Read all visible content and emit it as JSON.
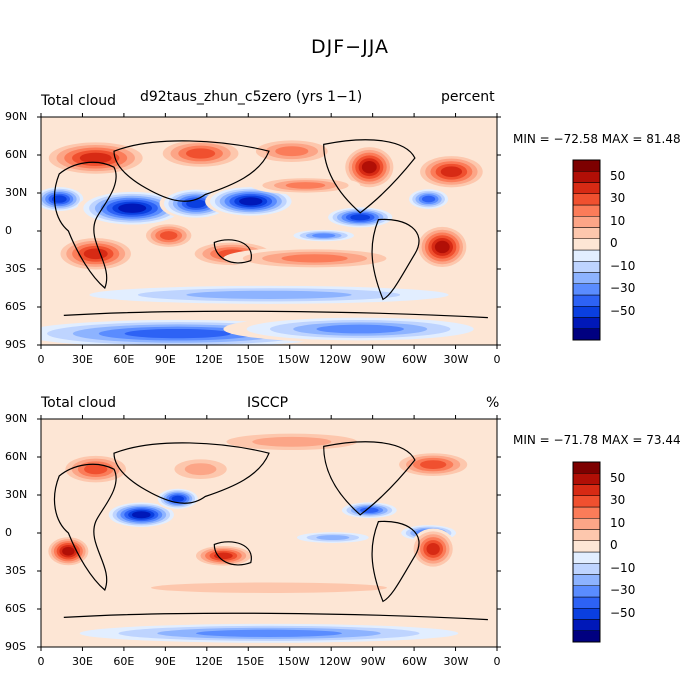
{
  "figure": {
    "title": "DJF−JJA"
  },
  "colors": {
    "scale": [
      "#000080",
      "#0018b8",
      "#0a3fe0",
      "#2d62f5",
      "#5a8cff",
      "#8db3ff",
      "#bed4ff",
      "#e2eeff",
      "#fde6d5",
      "#fdc7ad",
      "#fca587",
      "#fb7c59",
      "#f0502f",
      "#d72a14",
      "#b10f06",
      "#7d0000"
    ],
    "land": "#000000"
  },
  "panels": [
    {
      "id": "model",
      "title_left": "Total cloud",
      "title_center": "d92taus_zhun_c5zero (yrs 1−1)",
      "title_right": "percent",
      "stats": "MIN = −72.58  MAX =  81.48",
      "colorbar_labels": [
        "50",
        "30",
        "10",
        "0",
        "−10",
        "−30",
        "−50"
      ]
    },
    {
      "id": "isccp",
      "title_left": "Total cloud",
      "title_center": "ISCCP",
      "title_right": "%",
      "stats": "MIN = −71.78  MAX =  73.44",
      "colorbar_labels": [
        "50",
        "30",
        "10",
        "0",
        "−10",
        "−30",
        "−50"
      ]
    }
  ],
  "axes": {
    "lat_labels": [
      "90N",
      "60N",
      "30N",
      "0",
      "30S",
      "60S",
      "90S"
    ],
    "lon_labels": [
      "0",
      "30E",
      "60E",
      "90E",
      "120E",
      "150E",
      "150W",
      "120W",
      "90W",
      "60W",
      "30W",
      "0"
    ]
  }
}
